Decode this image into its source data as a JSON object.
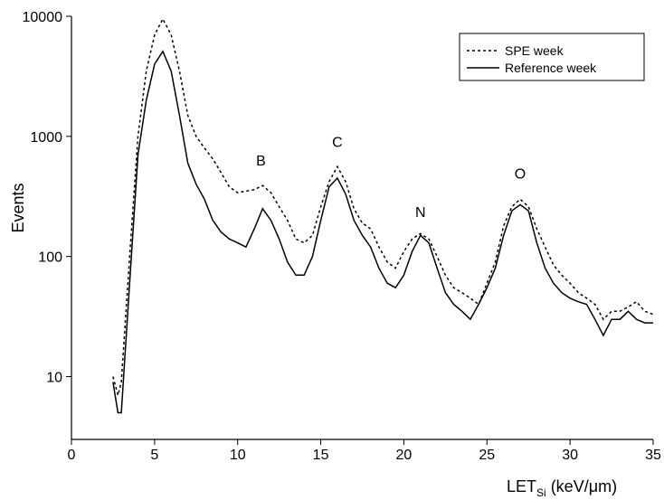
{
  "chart_data": {
    "type": "line",
    "ylabel": "Events",
    "xlabel": "LET",
    "xlabel_subscript": "Si",
    "xlabel_unit": "(keV/μm)",
    "xlim": [
      0,
      35
    ],
    "xticks": [
      0,
      5,
      10,
      15,
      20,
      25,
      30,
      35
    ],
    "ylim": [
      3,
      10000
    ],
    "yticks": [
      10,
      100,
      1000,
      10000
    ],
    "yscale": "log",
    "legend": "upper right",
    "x": [
      2.5,
      2.8,
      3,
      3.5,
      4,
      4.5,
      5,
      5.5,
      6,
      6.5,
      7,
      7.5,
      8,
      8.5,
      9,
      9.5,
      10,
      10.5,
      11,
      11.5,
      12,
      12.5,
      13,
      13.5,
      14,
      14.5,
      15,
      15.5,
      16,
      16.5,
      17,
      17.5,
      18,
      18.5,
      19,
      19.5,
      20,
      20.5,
      21,
      21.5,
      22,
      22.5,
      23,
      23.5,
      24,
      24.5,
      25,
      25.5,
      26,
      26.5,
      27,
      27.5,
      28,
      28.5,
      29,
      29.5,
      30,
      30.5,
      31,
      31.5,
      32,
      32.5,
      33,
      33.5,
      34,
      34.5,
      35
    ],
    "series": [
      {
        "name": "SPE week",
        "color": "#000000",
        "line_style": "dotted",
        "values": [
          10,
          7,
          9,
          100,
          1000,
          3500,
          7000,
          9500,
          7000,
          3500,
          1500,
          1000,
          800,
          650,
          500,
          380,
          340,
          350,
          360,
          390,
          340,
          260,
          200,
          140,
          130,
          150,
          260,
          420,
          560,
          420,
          250,
          190,
          170,
          120,
          90,
          80,
          110,
          140,
          155,
          140,
          100,
          70,
          55,
          50,
          45,
          40,
          60,
          90,
          180,
          260,
          300,
          260,
          170,
          120,
          85,
          70,
          60,
          50,
          45,
          40,
          30,
          35,
          35,
          38,
          42,
          35,
          33
        ]
      },
      {
        "name": "Reference week",
        "color": "#000000",
        "line_style": "solid",
        "values": [
          9,
          5,
          5,
          60,
          700,
          2000,
          4000,
          5100,
          3500,
          1500,
          600,
          400,
          300,
          200,
          160,
          140,
          130,
          120,
          170,
          250,
          200,
          140,
          90,
          70,
          70,
          100,
          200,
          380,
          450,
          330,
          200,
          150,
          120,
          80,
          60,
          55,
          70,
          110,
          150,
          130,
          80,
          50,
          40,
          35,
          30,
          40,
          55,
          80,
          150,
          240,
          270,
          240,
          130,
          80,
          60,
          50,
          45,
          42,
          40,
          30,
          22,
          30,
          30,
          35,
          30,
          28,
          28
        ]
      }
    ],
    "annotations": [
      {
        "text": "B",
        "x": 11.4,
        "y": 575
      },
      {
        "text": "C",
        "x": 16,
        "y": 815
      },
      {
        "text": "N",
        "x": 21,
        "y": 214
      },
      {
        "text": "O",
        "x": 27,
        "y": 445
      }
    ]
  }
}
